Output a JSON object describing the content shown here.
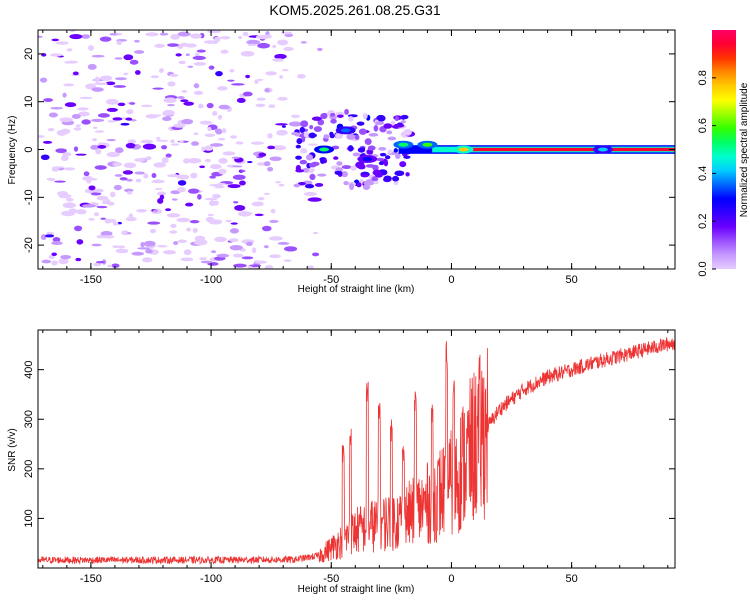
{
  "title": "KOM5.2025.261.08.25.G31",
  "chart_data": [
    {
      "type": "heatmap",
      "name": "spectrogram",
      "xlabel": "Height of straight line (km)",
      "ylabel": "Frequency (Hz)",
      "xlim": [
        -172,
        93
      ],
      "ylim": [
        -25,
        25
      ],
      "xticks": [
        -150,
        -100,
        -50,
        0,
        50
      ],
      "yticks": [
        -20,
        -10,
        0,
        10,
        20
      ],
      "colorbar": {
        "label": "Normalized spectral amplitude",
        "range": [
          0,
          1
        ],
        "ticks": [
          0.0,
          0.2,
          0.4,
          0.6,
          0.8
        ],
        "tick_labels": [
          "0.0",
          "0.2",
          "0.4",
          "0.6",
          "0.8"
        ],
        "colors": [
          "#e6ccff",
          "#c699ff",
          "#9b50ff",
          "#6a00ff",
          "#3300ff",
          "#0000ff",
          "#0066ff",
          "#00ccff",
          "#00ffcc",
          "#00ff66",
          "#33ff00",
          "#99ff00",
          "#ffff00",
          "#ffcc00",
          "#ff8800",
          "#ff3300",
          "#ff0033",
          "#ff0066"
        ]
      },
      "noise_region_x": [
        -172,
        -65
      ],
      "main_line_frequency_hz": 0,
      "main_line_x_start_km": 5,
      "strong_features": [
        {
          "x": -53,
          "y": 0,
          "amplitude": 0.5
        },
        {
          "x": -44,
          "y": 4,
          "amplitude": 0.35
        },
        {
          "x": -35,
          "y": -2,
          "amplitude": 0.3
        },
        {
          "x": -20,
          "y": 1,
          "amplitude": 0.55
        },
        {
          "x": -10,
          "y": 1,
          "amplitude": 0.6
        },
        {
          "x": 5,
          "y": 0,
          "amplitude": 0.75
        },
        {
          "x": 63,
          "y": 0,
          "amplitude": 0.4
        }
      ]
    },
    {
      "type": "line",
      "name": "snr",
      "xlabel": "Height of straight line (km)",
      "ylabel": "SNR (v/v)",
      "xlim": [
        -172,
        93
      ],
      "ylim": [
        0,
        480
      ],
      "xticks": [
        -150,
        -100,
        -50,
        0,
        50
      ],
      "yticks": [
        100,
        200,
        300,
        400
      ],
      "line_color": "#ee3333",
      "envelope_x": [
        -172,
        -100,
        -65,
        -55,
        -50,
        -40,
        -30,
        -20,
        -10,
        0,
        10,
        20,
        30,
        40,
        60,
        80,
        93
      ],
      "envelope_y": [
        16,
        16,
        17,
        25,
        40,
        75,
        90,
        100,
        130,
        170,
        250,
        320,
        360,
        385,
        415,
        440,
        455
      ],
      "spike_x": [
        -45,
        -42,
        -35,
        -30,
        -25,
        -20,
        -15,
        -8,
        -2,
        1
      ],
      "spike_y": [
        250,
        290,
        385,
        340,
        300,
        250,
        370,
        330,
        460,
        400
      ]
    }
  ]
}
